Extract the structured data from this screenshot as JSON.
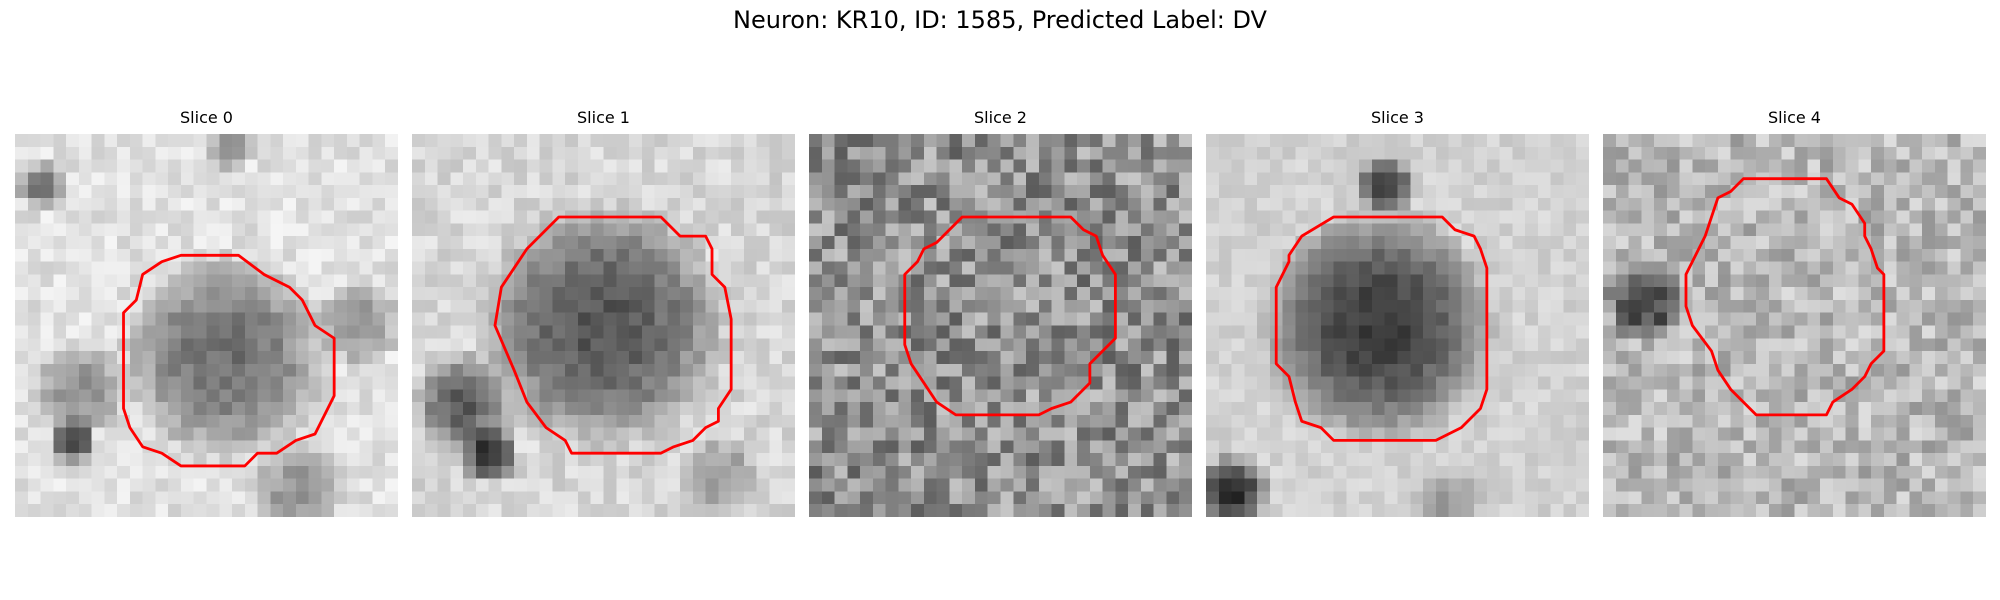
{
  "figure": {
    "title": "Neuron: KR10, ID: 1585, Predicted Label: DV"
  },
  "colors": {
    "contour": "#ff0000",
    "background": "#ffffff"
  },
  "colormap": "gray",
  "panels": [
    {
      "title": "Slice 0"
    },
    {
      "title": "Slice 1"
    },
    {
      "title": "Slice 2"
    },
    {
      "title": "Slice 3"
    },
    {
      "title": "Slice 4"
    }
  ]
}
